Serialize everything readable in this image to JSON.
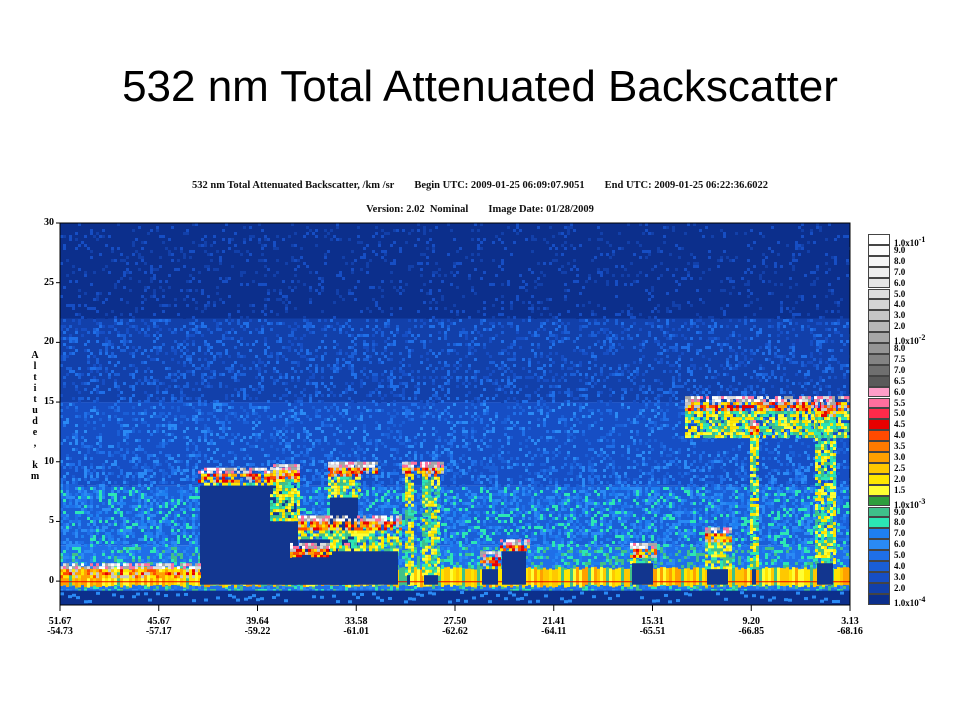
{
  "title": "532 nm Total Attenuated Backscatter",
  "header": {
    "product": "532 nm Total Attenuated Backscatter, /km /sr",
    "begin_utc": "Begin UTC: 2009-01-25 06:09:07.9051",
    "end_utc": "End UTC: 2009-01-25 06:22:36.6022",
    "version": "Version: 2.02  Nominal",
    "image_date": "Image Date: 01/28/2009"
  },
  "chart_data": {
    "type": "heatmap",
    "ylabel": "Altitude, km",
    "y_ticks": [
      "30",
      "25",
      "20",
      "15",
      "10",
      "5",
      "0"
    ],
    "y_tick_values": [
      30,
      25,
      20,
      15,
      10,
      5,
      0
    ],
    "ylim": [
      -2,
      30
    ],
    "x_ticks": [
      {
        "lat": "51.67",
        "lon": "-54.73"
      },
      {
        "lat": "45.67",
        "lon": "-57.17"
      },
      {
        "lat": "39.64",
        "lon": "-59.22"
      },
      {
        "lat": "33.58",
        "lon": "-61.01"
      },
      {
        "lat": "27.50",
        "lon": "-62.62"
      },
      {
        "lat": "21.41",
        "lon": "-64.11"
      },
      {
        "lat": "15.31",
        "lon": "-65.51"
      },
      {
        "lat": "9.20",
        "lon": "-66.85"
      },
      {
        "lat": "3.13",
        "lon": "-68.16"
      }
    ],
    "colorbar": [
      {
        "label": "1.0x10-1",
        "color": "#ffffff"
      },
      {
        "label": "9.0",
        "color": "#fbfbfb"
      },
      {
        "label": "8.0",
        "color": "#f5f5f5"
      },
      {
        "label": "7.0",
        "color": "#eeeeee"
      },
      {
        "label": "6.0",
        "color": "#e6e6e6"
      },
      {
        "label": "5.0",
        "color": "#dddddd"
      },
      {
        "label": "4.0",
        "color": "#d3d3d3"
      },
      {
        "label": "3.0",
        "color": "#c6c6c6"
      },
      {
        "label": "2.0",
        "color": "#b8b8b8"
      },
      {
        "label": "1.0x10-2",
        "color": "#a6a6a6"
      },
      {
        "label": "8.0",
        "color": "#959595"
      },
      {
        "label": "7.5",
        "color": "#838383"
      },
      {
        "label": "7.0",
        "color": "#6f6f6f"
      },
      {
        "label": "6.5",
        "color": "#5a5a5a"
      },
      {
        "label": "6.0",
        "color": "#ff9ec8"
      },
      {
        "label": "5.5",
        "color": "#ff6f9e"
      },
      {
        "label": "5.0",
        "color": "#ff2a4a"
      },
      {
        "label": "4.5",
        "color": "#e80000"
      },
      {
        "label": "4.0",
        "color": "#ff4a00"
      },
      {
        "label": "3.5",
        "color": "#ff7a00"
      },
      {
        "label": "3.0",
        "color": "#ffa000"
      },
      {
        "label": "2.5",
        "color": "#ffc800"
      },
      {
        "label": "2.0",
        "color": "#ffe600"
      },
      {
        "label": "1.5",
        "color": "#ffff33"
      },
      {
        "label": "1.0x10-3",
        "color": "#2e9e3c"
      },
      {
        "label": "9.0",
        "color": "#3fc08a"
      },
      {
        "label": "8.0",
        "color": "#2ce6b4"
      },
      {
        "label": "7.0",
        "color": "#1e7ff0"
      },
      {
        "label": "6.0",
        "color": "#2a8af5"
      },
      {
        "label": "5.0",
        "color": "#1f6fe8"
      },
      {
        "label": "4.0",
        "color": "#1a5ed6"
      },
      {
        "label": "3.0",
        "color": "#164ec4"
      },
      {
        "label": "2.0",
        "color": "#1240aa"
      },
      {
        "label": "1.0x10-4",
        "color": "#0c2f8c"
      }
    ]
  }
}
